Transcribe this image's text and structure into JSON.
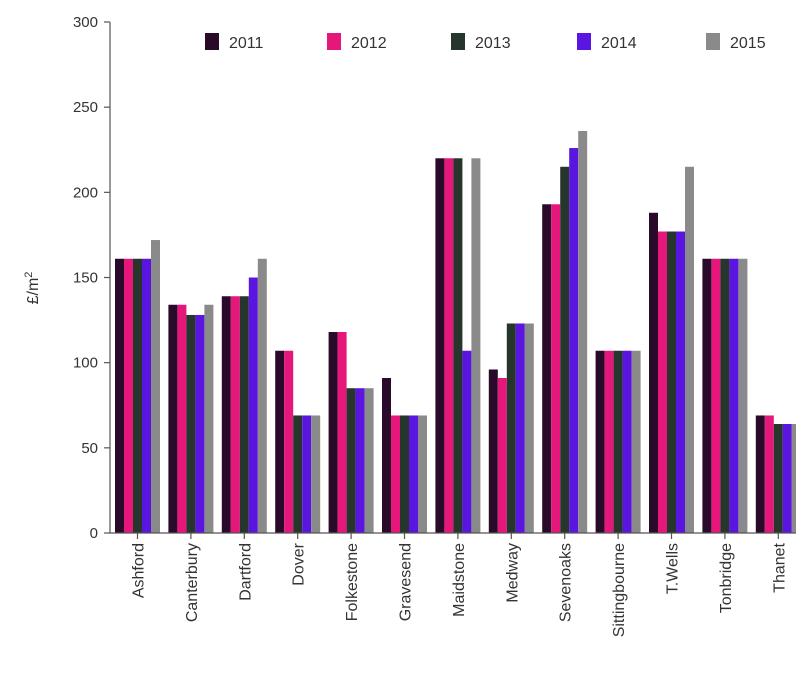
{
  "chart_data": {
    "type": "bar",
    "title": "",
    "xlabel": "",
    "ylabel": "£/m",
    "ylabel_superscript": "2",
    "ylim": [
      0,
      300
    ],
    "yticks": [
      0,
      50,
      100,
      150,
      200,
      250,
      300
    ],
    "grid": false,
    "legend_position": "top",
    "categories": [
      "Ashford",
      "Canterbury",
      "Dartford",
      "Dover",
      "Folkestone",
      "Gravesend",
      "Maidstone",
      "Medway",
      "Sevenoaks",
      "Sittingbourne",
      "T.Wells",
      "Tonbridge",
      "Thanet"
    ],
    "series": [
      {
        "name": "2011",
        "color": "#2a0a2a",
        "values": [
          161,
          134,
          139,
          107,
          118,
          91,
          220,
          96,
          193,
          107,
          188,
          161,
          69
        ]
      },
      {
        "name": "2012",
        "color": "#e5177a",
        "values": [
          161,
          134,
          139,
          107,
          118,
          69,
          220,
          91,
          193,
          107,
          177,
          161,
          69
        ]
      },
      {
        "name": "2013",
        "color": "#27362d",
        "values": [
          161,
          128,
          139,
          69,
          85,
          69,
          220,
          123,
          215,
          107,
          177,
          161,
          64
        ]
      },
      {
        "name": "2014",
        "color": "#5a16e0",
        "values": [
          161,
          128,
          150,
          69,
          85,
          69,
          107,
          123,
          226,
          107,
          177,
          161,
          64
        ]
      },
      {
        "name": "2015",
        "color": "#8a8a8a",
        "values": [
          172,
          134,
          161,
          69,
          85,
          69,
          220,
          123,
          236,
          107,
          215,
          161,
          64
        ]
      }
    ]
  }
}
